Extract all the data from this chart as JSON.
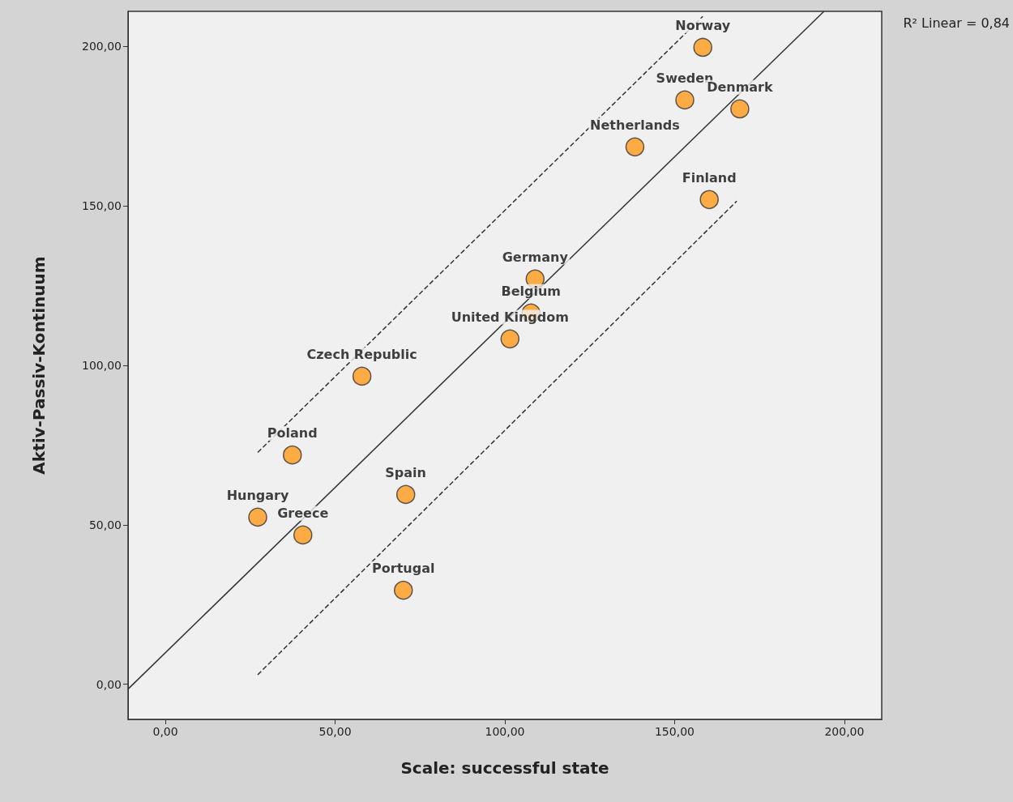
{
  "chart_data": {
    "type": "scatter",
    "xlabel": "Scale: successful state",
    "ylabel": "Aktiv-Passiv-Kontinuum",
    "xlim": [
      -11,
      211
    ],
    "ylim": [
      -11,
      211
    ],
    "xticks": [
      {
        "value": 0,
        "label": "0,00"
      },
      {
        "value": 50,
        "label": "50,00"
      },
      {
        "value": 100,
        "label": "100,00"
      },
      {
        "value": 150,
        "label": "150,00"
      },
      {
        "value": 200,
        "label": "200,00"
      }
    ],
    "yticks": [
      {
        "value": 0,
        "label": "0,00"
      },
      {
        "value": 50,
        "label": "50,00"
      },
      {
        "value": 100,
        "label": "100,00"
      },
      {
        "value": 150,
        "label": "150,00"
      },
      {
        "value": 200,
        "label": "200,00"
      }
    ],
    "annotations": [
      "R² Linear = 0,84"
    ],
    "series": [
      {
        "type": "scatter",
        "color": "#ff9a1a",
        "marker": "circle",
        "x": [
          158.3,
          153,
          169.2,
          138.3,
          160.2,
          108.9,
          107.7,
          101.5,
          57.9,
          37.4,
          70.8,
          27.2,
          40.5,
          70.1
        ],
        "values": [
          199.7,
          183.2,
          180.4,
          168.5,
          152,
          127.1,
          116.4,
          108.3,
          96.6,
          71.9,
          59.5,
          52.4,
          46.8,
          29.5
        ],
        "value_labels": [
          "Norway",
          "Sweden",
          "Denmark",
          "Netherlands",
          "Finland",
          "Germany",
          "Belgium",
          "United Kingdom",
          "Czech Republic",
          "Poland",
          "Spain",
          "Hungary",
          "Greece",
          "Portugal"
        ]
      },
      {
        "type": "line",
        "color": "#333333",
        "line_style": "solid",
        "x": [
          -11,
          194
        ],
        "values": [
          -1.5,
          211
        ]
      },
      {
        "type": "line",
        "color": "#333333",
        "line_style": "dashed",
        "x": [
          27.2,
          158.3
        ],
        "values": [
          72.7,
          209.4
        ]
      },
      {
        "type": "line",
        "color": "#333333",
        "line_style": "dashed",
        "x": [
          27.2,
          168.3
        ],
        "values": [
          3,
          151.5
        ]
      }
    ]
  }
}
